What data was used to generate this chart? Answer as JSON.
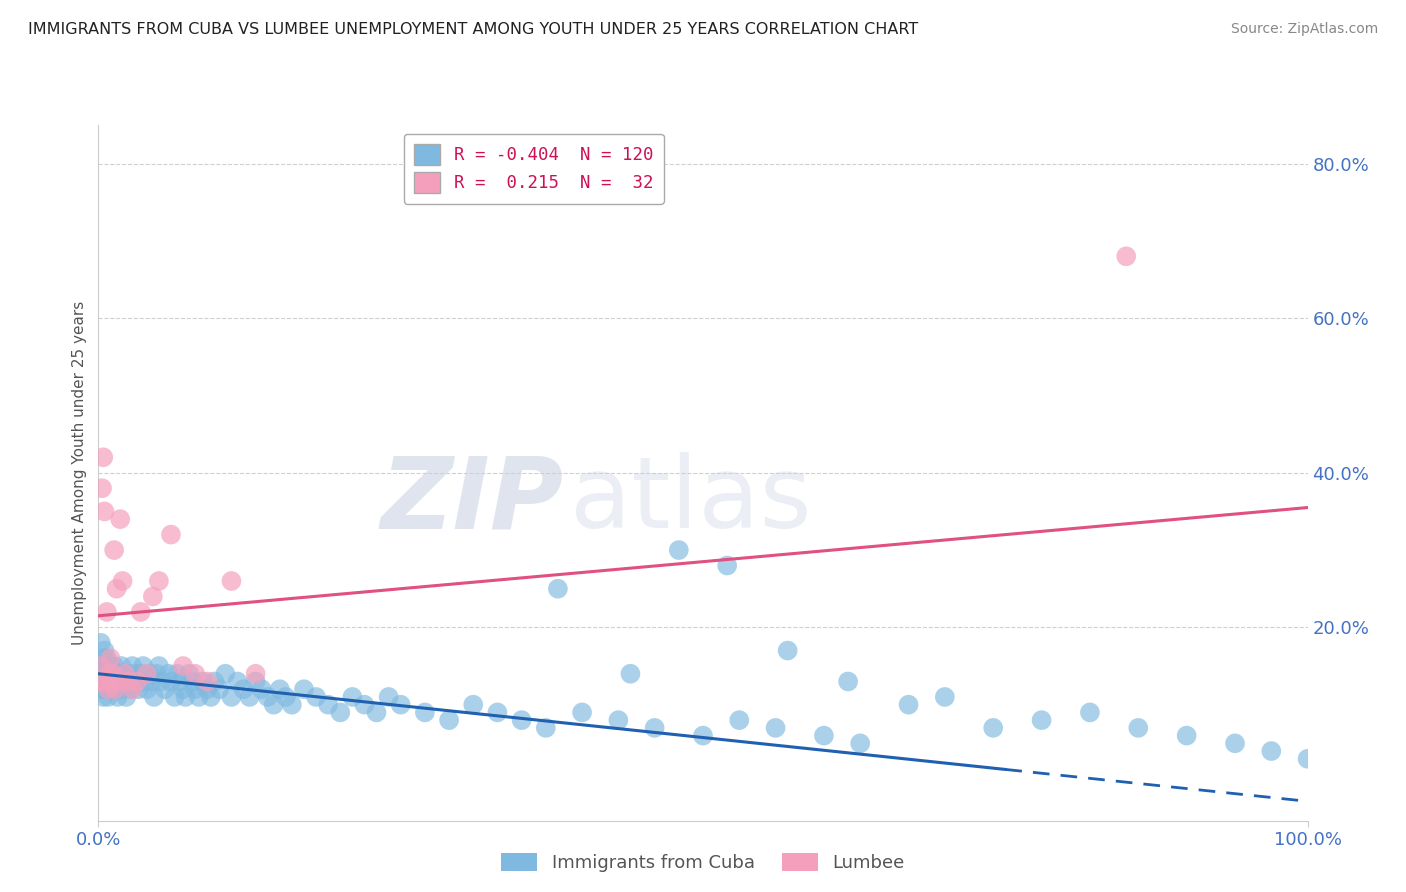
{
  "title": "IMMIGRANTS FROM CUBA VS LUMBEE UNEMPLOYMENT AMONG YOUTH UNDER 25 YEARS CORRELATION CHART",
  "source": "Source: ZipAtlas.com",
  "ylabel": "Unemployment Among Youth under 25 years",
  "legend_label1": "Immigrants from Cuba",
  "legend_label2": "Lumbee",
  "r1": -0.404,
  "n1": 120,
  "r2": 0.215,
  "n2": 32,
  "color_blue": "#7fb9e0",
  "color_pink": "#f4a0bc",
  "line_color_blue": "#2060b0",
  "line_color_pink": "#e05080",
  "watermark_zip": "ZIP",
  "watermark_atlas": "atlas",
  "background": "#ffffff",
  "yticks": [
    0.0,
    20.0,
    40.0,
    60.0,
    80.0
  ],
  "ytick_labels": [
    "",
    "20.0%",
    "40.0%",
    "60.0%",
    "80.0%"
  ],
  "xmin": 0.0,
  "xmax": 100.0,
  "ymin": -5.0,
  "ymax": 85.0,
  "blue_line_x0": 0.0,
  "blue_line_x1": 100.0,
  "blue_line_y0": 14.0,
  "blue_line_y1": -2.5,
  "blue_solid_end": 75.0,
  "pink_line_x0": 0.0,
  "pink_line_x1": 100.0,
  "pink_line_y0": 21.5,
  "pink_line_y1": 35.5,
  "blue_scatter_x": [
    0.1,
    0.2,
    0.2,
    0.3,
    0.3,
    0.4,
    0.4,
    0.5,
    0.5,
    0.5,
    0.6,
    0.6,
    0.7,
    0.7,
    0.8,
    0.8,
    0.9,
    0.9,
    1.0,
    1.0,
    1.1,
    1.2,
    1.2,
    1.3,
    1.4,
    1.5,
    1.5,
    1.6,
    1.7,
    1.8,
    1.9,
    2.0,
    2.1,
    2.2,
    2.3,
    2.5,
    2.6,
    2.7,
    2.8,
    3.0,
    3.2,
    3.3,
    3.5,
    3.7,
    3.8,
    4.0,
    4.2,
    4.4,
    4.6,
    4.8,
    5.0,
    5.2,
    5.5,
    5.8,
    6.0,
    6.3,
    6.5,
    6.8,
    7.0,
    7.2,
    7.5,
    7.8,
    8.0,
    8.3,
    8.6,
    9.0,
    9.3,
    9.6,
    10.0,
    10.5,
    11.0,
    11.5,
    12.0,
    12.5,
    13.0,
    13.5,
    14.0,
    14.5,
    15.0,
    15.5,
    16.0,
    17.0,
    18.0,
    19.0,
    20.0,
    21.0,
    22.0,
    23.0,
    24.0,
    25.0,
    27.0,
    29.0,
    31.0,
    33.0,
    35.0,
    37.0,
    40.0,
    43.0,
    46.0,
    50.0,
    53.0,
    56.0,
    60.0,
    63.0,
    67.0,
    70.0,
    74.0,
    78.0,
    82.0,
    86.0,
    90.0,
    94.0,
    97.0,
    100.0,
    44.0,
    38.0,
    52.0,
    48.0,
    57.0,
    62.0
  ],
  "blue_scatter_y": [
    15.0,
    13.0,
    18.0,
    14.0,
    12.0,
    16.0,
    11.0,
    13.0,
    15.0,
    17.0,
    14.0,
    12.0,
    16.0,
    13.0,
    15.0,
    11.0,
    14.0,
    12.0,
    13.0,
    15.0,
    14.0,
    13.0,
    12.0,
    15.0,
    14.0,
    13.0,
    12.0,
    11.0,
    14.0,
    13.0,
    15.0,
    12.0,
    14.0,
    13.0,
    11.0,
    14.0,
    13.0,
    12.0,
    15.0,
    14.0,
    13.0,
    12.0,
    14.0,
    15.0,
    13.0,
    12.0,
    14.0,
    13.0,
    11.0,
    14.0,
    15.0,
    13.0,
    12.0,
    14.0,
    13.0,
    11.0,
    14.0,
    13.0,
    12.0,
    11.0,
    14.0,
    13.0,
    12.0,
    11.0,
    13.0,
    12.0,
    11.0,
    13.0,
    12.0,
    14.0,
    11.0,
    13.0,
    12.0,
    11.0,
    13.0,
    12.0,
    11.0,
    10.0,
    12.0,
    11.0,
    10.0,
    12.0,
    11.0,
    10.0,
    9.0,
    11.0,
    10.0,
    9.0,
    11.0,
    10.0,
    9.0,
    8.0,
    10.0,
    9.0,
    8.0,
    7.0,
    9.0,
    8.0,
    7.0,
    6.0,
    8.0,
    7.0,
    6.0,
    5.0,
    10.0,
    11.0,
    7.0,
    8.0,
    9.0,
    7.0,
    6.0,
    5.0,
    4.0,
    3.0,
    14.0,
    25.0,
    28.0,
    30.0,
    17.0,
    13.0
  ],
  "pink_scatter_x": [
    0.1,
    0.2,
    0.3,
    0.4,
    0.5,
    0.6,
    0.7,
    0.8,
    0.9,
    1.0,
    1.1,
    1.2,
    1.3,
    1.4,
    1.5,
    1.6,
    1.8,
    2.0,
    2.2,
    2.5,
    2.8,
    3.2,
    3.5,
    4.0,
    4.5,
    5.0,
    6.0,
    7.0,
    8.0,
    9.0,
    11.0,
    13.0
  ],
  "pink_scatter_y": [
    13.0,
    15.0,
    38.0,
    42.0,
    35.0,
    13.0,
    22.0,
    12.0,
    14.0,
    16.0,
    13.0,
    14.0,
    30.0,
    12.0,
    25.0,
    13.0,
    34.0,
    26.0,
    14.0,
    13.0,
    12.0,
    13.0,
    22.0,
    14.0,
    24.0,
    26.0,
    32.0,
    15.0,
    14.0,
    13.0,
    26.0,
    14.0
  ],
  "pink_outlier_x": 85.0,
  "pink_outlier_y": 68.0
}
